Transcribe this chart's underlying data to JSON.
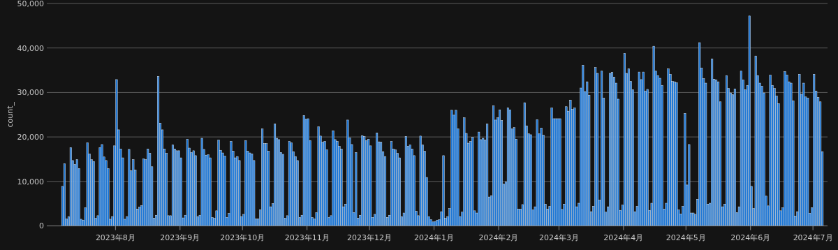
{
  "chart_data": {
    "type": "bar",
    "ylabel": "count_",
    "x": [
      "2023-07-06",
      "2023-07-07",
      "2023-07-08",
      "2023-07-09",
      "2023-07-10",
      "2023-07-11",
      "2023-07-12",
      "2023-07-13",
      "2023-07-14",
      "2023-07-15",
      "2023-07-16",
      "2023-07-17",
      "2023-07-18",
      "2023-07-19",
      "2023-07-20",
      "2023-07-21",
      "2023-07-22",
      "2023-07-23",
      "2023-07-24",
      "2023-07-25",
      "2023-07-26",
      "2023-07-27",
      "2023-07-28",
      "2023-07-29",
      "2023-07-30",
      "2023-07-31",
      "2023-08-01",
      "2023-08-02",
      "2023-08-03",
      "2023-08-04",
      "2023-08-05",
      "2023-08-06",
      "2023-08-07",
      "2023-08-08",
      "2023-08-09",
      "2023-08-10",
      "2023-08-11",
      "2023-08-12",
      "2023-08-13",
      "2023-08-14",
      "2023-08-15",
      "2023-08-16",
      "2023-08-17",
      "2023-08-18",
      "2023-08-19",
      "2023-08-20",
      "2023-08-21",
      "2023-08-22",
      "2023-08-23",
      "2023-08-24",
      "2023-08-25",
      "2023-08-26",
      "2023-08-27",
      "2023-08-28",
      "2023-08-29",
      "2023-08-30",
      "2023-08-31",
      "2023-09-01",
      "2023-09-02",
      "2023-09-03",
      "2023-09-04",
      "2023-09-05",
      "2023-09-06",
      "2023-09-07",
      "2023-09-08",
      "2023-09-09",
      "2023-09-10",
      "2023-09-11",
      "2023-09-12",
      "2023-09-13",
      "2023-09-14",
      "2023-09-15",
      "2023-09-16",
      "2023-09-17",
      "2023-09-18",
      "2023-09-19",
      "2023-09-20",
      "2023-09-21",
      "2023-09-22",
      "2023-09-23",
      "2023-09-24",
      "2023-09-25",
      "2023-09-26",
      "2023-09-27",
      "2023-09-28",
      "2023-09-29",
      "2023-09-30",
      "2023-10-01",
      "2023-10-02",
      "2023-10-03",
      "2023-10-04",
      "2023-10-05",
      "2023-10-06",
      "2023-10-07",
      "2023-10-08",
      "2023-10-09",
      "2023-10-10",
      "2023-10-11",
      "2023-10-12",
      "2023-10-13",
      "2023-10-14",
      "2023-10-15",
      "2023-10-16",
      "2023-10-17",
      "2023-10-18",
      "2023-10-19",
      "2023-10-20",
      "2023-10-21",
      "2023-10-22",
      "2023-10-23",
      "2023-10-24",
      "2023-10-25",
      "2023-10-26",
      "2023-10-27",
      "2023-10-28",
      "2023-10-29",
      "2023-10-30",
      "2023-10-31",
      "2023-11-01",
      "2023-11-02",
      "2023-11-03",
      "2023-11-04",
      "2023-11-05",
      "2023-11-06",
      "2023-11-07",
      "2023-11-08",
      "2023-11-09",
      "2023-11-10",
      "2023-11-11",
      "2023-11-12",
      "2023-11-13",
      "2023-11-14",
      "2023-11-15",
      "2023-11-16",
      "2023-11-17",
      "2023-11-18",
      "2023-11-19",
      "2023-11-20",
      "2023-11-21",
      "2023-11-22",
      "2023-11-23",
      "2023-11-24",
      "2023-11-25",
      "2023-11-26",
      "2023-11-27",
      "2023-11-28",
      "2023-11-29",
      "2023-11-30",
      "2023-12-01",
      "2023-12-02",
      "2023-12-03",
      "2023-12-04",
      "2023-12-05",
      "2023-12-06",
      "2023-12-07",
      "2023-12-08",
      "2023-12-09",
      "2023-12-10",
      "2023-12-11",
      "2023-12-12",
      "2023-12-13",
      "2023-12-14",
      "2023-12-15",
      "2023-12-16",
      "2023-12-17",
      "2023-12-18",
      "2023-12-19",
      "2023-12-20",
      "2023-12-21",
      "2023-12-22",
      "2023-12-23",
      "2023-12-24",
      "2023-12-25",
      "2023-12-26",
      "2023-12-27",
      "2023-12-28",
      "2023-12-29",
      "2023-12-30",
      "2023-12-31",
      "2024-01-01",
      "2024-01-02",
      "2024-01-03",
      "2024-01-04",
      "2024-01-05",
      "2024-01-06",
      "2024-01-07",
      "2024-01-08",
      "2024-01-09",
      "2024-01-10",
      "2024-01-11",
      "2024-01-12",
      "2024-01-13",
      "2024-01-14",
      "2024-01-15",
      "2024-01-16",
      "2024-01-17",
      "2024-01-18",
      "2024-01-19",
      "2024-01-20",
      "2024-01-21",
      "2024-01-22",
      "2024-01-23",
      "2024-01-24",
      "2024-01-25",
      "2024-01-26",
      "2024-01-27",
      "2024-01-28",
      "2024-01-29",
      "2024-01-30",
      "2024-01-31",
      "2024-02-01",
      "2024-02-02",
      "2024-02-03",
      "2024-02-04",
      "2024-02-05",
      "2024-02-06",
      "2024-02-07",
      "2024-02-08",
      "2024-02-09",
      "2024-02-10",
      "2024-02-11",
      "2024-02-12",
      "2024-02-13",
      "2024-02-14",
      "2024-02-15",
      "2024-02-16",
      "2024-02-17",
      "2024-02-18",
      "2024-02-19",
      "2024-02-20",
      "2024-02-21",
      "2024-02-22",
      "2024-02-23",
      "2024-02-24",
      "2024-02-25",
      "2024-02-26",
      "2024-02-27",
      "2024-02-28",
      "2024-02-29",
      "2024-03-01",
      "2024-03-02",
      "2024-03-03",
      "2024-03-04",
      "2024-03-05",
      "2024-03-06",
      "2024-03-07",
      "2024-03-08",
      "2024-03-09",
      "2024-03-10",
      "2024-03-11",
      "2024-03-12",
      "2024-03-13",
      "2024-03-14",
      "2024-03-15",
      "2024-03-16",
      "2024-03-17",
      "2024-03-18",
      "2024-03-19",
      "2024-03-20",
      "2024-03-21",
      "2024-03-22",
      "2024-03-23",
      "2024-03-24",
      "2024-03-25",
      "2024-03-26",
      "2024-03-27",
      "2024-03-28",
      "2024-03-29",
      "2024-03-30",
      "2024-03-31",
      "2024-04-01",
      "2024-04-02",
      "2024-04-03",
      "2024-04-04",
      "2024-04-05",
      "2024-04-06",
      "2024-04-07",
      "2024-04-08",
      "2024-04-09",
      "2024-04-10",
      "2024-04-11",
      "2024-04-12",
      "2024-04-13",
      "2024-04-14",
      "2024-04-15",
      "2024-04-16",
      "2024-04-17",
      "2024-04-18",
      "2024-04-19",
      "2024-04-20",
      "2024-04-21",
      "2024-04-22",
      "2024-04-23",
      "2024-04-24",
      "2024-04-25",
      "2024-04-26",
      "2024-04-27",
      "2024-04-28",
      "2024-04-29",
      "2024-04-30",
      "2024-05-01",
      "2024-05-02",
      "2024-05-03",
      "2024-05-04",
      "2024-05-05",
      "2024-05-06",
      "2024-05-07",
      "2024-05-08",
      "2024-05-09",
      "2024-05-10",
      "2024-05-11",
      "2024-05-12",
      "2024-05-13",
      "2024-05-14",
      "2024-05-15",
      "2024-05-16",
      "2024-05-17",
      "2024-05-18",
      "2024-05-19",
      "2024-05-20",
      "2024-05-21",
      "2024-05-22",
      "2024-05-23",
      "2024-05-24",
      "2024-05-25",
      "2024-05-26",
      "2024-05-27",
      "2024-05-28",
      "2024-05-29",
      "2024-05-30",
      "2024-05-31",
      "2024-06-01",
      "2024-06-02",
      "2024-06-03",
      "2024-06-04",
      "2024-06-05",
      "2024-06-06",
      "2024-06-07",
      "2024-06-08",
      "2024-06-09",
      "2024-06-10",
      "2024-06-11",
      "2024-06-12",
      "2024-06-13",
      "2024-06-14",
      "2024-06-15",
      "2024-06-16",
      "2024-06-17",
      "2024-06-18",
      "2024-06-19",
      "2024-06-20",
      "2024-06-21",
      "2024-06-22",
      "2024-06-23",
      "2024-06-24",
      "2024-06-25",
      "2024-06-26",
      "2024-06-27",
      "2024-06-28",
      "2024-06-29",
      "2024-06-30",
      "2024-07-01",
      "2024-07-02",
      "2024-07-03",
      "2024-07-04",
      "2024-07-05"
    ],
    "series": [
      {
        "color": "#1f78d6",
        "values": [
          8900,
          14000,
          1600,
          2100,
          17600,
          14700,
          13800,
          14900,
          12900,
          1500,
          1300,
          4100,
          18700,
          16200,
          14900,
          14500,
          1700,
          2300,
          17600,
          18300,
          15500,
          14700,
          12900,
          1500,
          2100,
          18000,
          32900,
          21600,
          17300,
          15300,
          1500,
          2100,
          17200,
          12400,
          14900,
          12600,
          3800,
          4200,
          4600,
          15100,
          14900,
          17300,
          16300,
          13300,
          1700,
          2400,
          33600,
          23100,
          21600,
          17300,
          16300,
          2300,
          2300,
          18200,
          17300,
          16900,
          16900,
          15300,
          1800,
          2400,
          19500,
          17500,
          16500,
          16900,
          15800,
          2100,
          2400,
          19700,
          17200,
          15900,
          16000,
          15300,
          1900,
          1700,
          3400,
          19300,
          17000,
          16400,
          15700,
          1900,
          2800,
          19000,
          16800,
          15300,
          15600,
          14700,
          2100,
          2600,
          19200,
          16800,
          16400,
          16200,
          14700,
          1600,
          1600,
          3600,
          21800,
          18500,
          18500,
          16800,
          4300,
          5000,
          22900,
          19700,
          19400,
          16500,
          16100,
          1700,
          2300,
          19000,
          18700,
          16700,
          15600,
          14700,
          1900,
          2400,
          24800,
          24000,
          24100,
          19200,
          1900,
          1600,
          3000,
          22300,
          20200,
          18800,
          19000,
          17100,
          1900,
          2300,
          21400,
          19400,
          19000,
          17900,
          17300,
          4300,
          4900,
          23800,
          19800,
          18300,
          3000,
          16500,
          1700,
          2400,
          20300,
          20100,
          19200,
          19500,
          18000,
          1900,
          2600,
          20900,
          18900,
          18800,
          16700,
          15600,
          1900,
          2400,
          19000,
          17300,
          17100,
          16300,
          15300,
          2100,
          2900,
          20100,
          17900,
          18200,
          17300,
          15800,
          3300,
          2300,
          20200,
          18200,
          16800,
          10900,
          2100,
          1400,
          900,
          1000,
          1300,
          1400,
          3200,
          15800,
          1700,
          2100,
          3900,
          26000,
          24900,
          26000,
          21800,
          2100,
          3100,
          24300,
          20800,
          18600,
          19000,
          19900,
          3400,
          2900,
          21100,
          19400,
          19700,
          19300,
          22900,
          6500,
          6800,
          27000,
          23800,
          24300,
          26100,
          23700,
          9400,
          9900,
          26500,
          26100,
          21800,
          22100,
          19500,
          3800,
          3800,
          4800,
          27700,
          22500,
          20700,
          20500,
          3600,
          4300,
          23900,
          20700,
          22000,
          20400,
          4900,
          3800,
          4400,
          26500,
          24100,
          24100,
          24100,
          24100,
          3700,
          4900,
          26800,
          25800,
          28300,
          26200,
          26500,
          4300,
          5100,
          31000,
          36100,
          30200,
          32400,
          29400,
          3200,
          4400,
          35600,
          34300,
          5800,
          34800,
          28700,
          3100,
          4300,
          34300,
          34500,
          33400,
          32100,
          28500,
          3500,
          4700,
          38800,
          34300,
          35300,
          32500,
          30600,
          3200,
          4400,
          34600,
          32900,
          34600,
          30300,
          30700,
          3500,
          5100,
          40400,
          34800,
          33800,
          33200,
          31600,
          3800,
          5100,
          35300,
          34100,
          32500,
          32400,
          32200,
          3600,
          2700,
          4400,
          25300,
          9200,
          18300,
          2900,
          2900,
          2600,
          6000,
          41200,
          35500,
          33100,
          32100,
          4900,
          5100,
          37500,
          33000,
          32800,
          32400,
          27900,
          4300,
          4900,
          33800,
          30900,
          29900,
          29500,
          30800,
          3000,
          4300,
          34800,
          32800,
          30600,
          31600,
          47200,
          8900,
          3900,
          38200,
          33800,
          32100,
          31400,
          29900,
          6700,
          4500,
          33900,
          31600,
          30900,
          29200,
          27500,
          3400,
          4100,
          34700,
          33900,
          32400,
          32100,
          28100,
          2200,
          3200,
          34100,
          29600,
          32100,
          29000,
          28700,
          2800,
          4100,
          34100,
          30300,
          28900,
          27900,
          16700
        ]
      }
    ],
    "xlim": [
      "2023-06-29",
      "2024-07-08"
    ],
    "xticks": [
      {
        "value": "2023-08-01",
        "label": "2023年8月"
      },
      {
        "value": "2023-09-01",
        "label": "2023年9月"
      },
      {
        "value": "2023-10-01",
        "label": "2023年10月"
      },
      {
        "value": "2023-11-01",
        "label": "2023年11月"
      },
      {
        "value": "2023-12-01",
        "label": "2023年12月"
      },
      {
        "value": "2024-01-01",
        "label": "2024年1月"
      },
      {
        "value": "2024-02-01",
        "label": "2024年2月"
      },
      {
        "value": "2024-03-01",
        "label": "2024年3月"
      },
      {
        "value": "2024-04-01",
        "label": "2024年4月"
      },
      {
        "value": "2024-05-01",
        "label": "2024年5月"
      },
      {
        "value": "2024-06-01",
        "label": "2024年6月"
      },
      {
        "value": "2024-07-01",
        "label": "2024年7月"
      }
    ],
    "ylim": [
      0,
      50000
    ],
    "yticks": [
      0,
      {
        "value": 10000,
        "label": "10,000"
      },
      {
        "value": 20000,
        "label": "20,000"
      },
      {
        "value": 30000,
        "label": "30,000"
      },
      {
        "value": 40000,
        "label": "40,000"
      },
      {
        "value": 50000,
        "label": "50,000"
      }
    ],
    "grid": "y"
  }
}
